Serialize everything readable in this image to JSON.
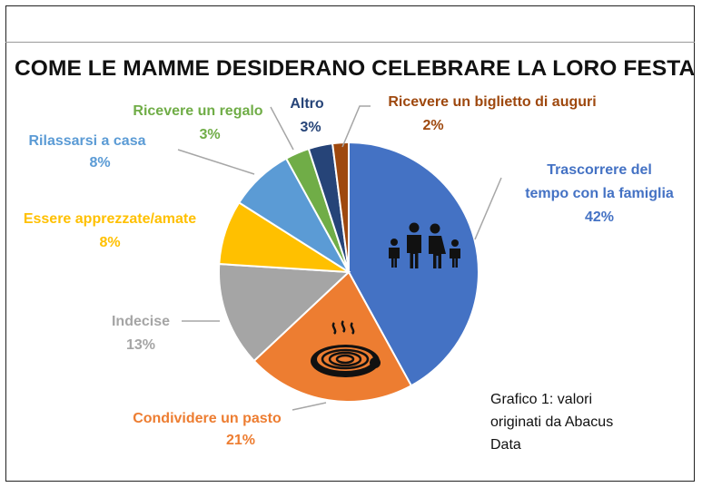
{
  "chart_data": {
    "type": "pie",
    "title": "COME LE MAMME DESIDERANO CELEBRARE LA LORO FESTA",
    "note": "Grafico 1: valori originati da Abacus Data",
    "slices": [
      {
        "label": "Trascorrere del tempo con la famiglia",
        "value": 42,
        "display": "42%",
        "color": "#4472C4",
        "icon": "family-icon"
      },
      {
        "label": "Condividere un pasto",
        "value": 21,
        "display": "21%",
        "color": "#ED7D31",
        "icon": "pasta-plate-icon"
      },
      {
        "label": "Indecise",
        "value": 13,
        "display": "13%",
        "color": "#A5A5A5"
      },
      {
        "label": "Essere apprezzate/amate",
        "value": 8,
        "display": "8%",
        "color": "#FFC000"
      },
      {
        "label": "Rilassarsi a casa",
        "value": 8,
        "display": "8%",
        "color": "#5B9BD5"
      },
      {
        "label": "Ricevere un regalo",
        "value": 3,
        "display": "3%",
        "color": "#70AD47"
      },
      {
        "label": "Altro",
        "value": 3,
        "display": "3%",
        "color": "#264478"
      },
      {
        "label": "Ricevere un biglietto di auguri",
        "value": 2,
        "display": "2%",
        "color": "#9E480E"
      }
    ],
    "start_angle": "12 o'clock",
    "direction": "clockwise",
    "legend": "none (data labels with leader lines)"
  }
}
